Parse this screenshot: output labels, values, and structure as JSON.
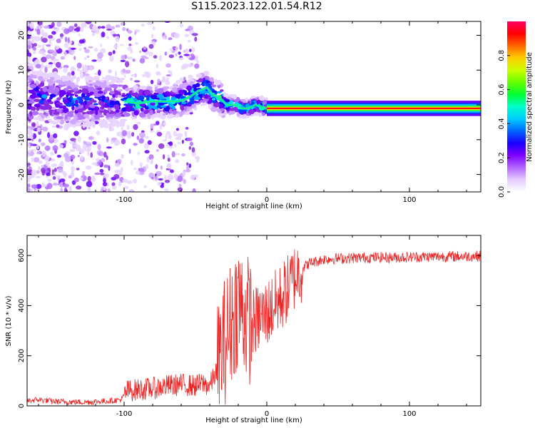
{
  "title": "S115.2023.122.01.54.R12",
  "chart_data": [
    {
      "type": "heatmap",
      "xlabel": "Height of straight line (km)",
      "ylabel": "Frequency (Hz)",
      "xlim": [
        -168,
        150
      ],
      "ylim": [
        -25,
        24
      ],
      "x_ticks": [
        -100,
        0,
        100
      ],
      "y_ticks": [
        -20,
        -10,
        0,
        10,
        20
      ],
      "colorbar": {
        "label": "Normalized spectral amplitude",
        "range": [
          0,
          1
        ],
        "ticks": [
          "0.0",
          "0.2",
          "0.4",
          "0.6",
          "0.8"
        ],
        "colormap": [
          "#ffffff",
          "#e6ccff",
          "#b266ff",
          "#7f00ff",
          "#1a00ff",
          "#0066ff",
          "#00ccff",
          "#00ffcc",
          "#00ff33",
          "#66ff00",
          "#ccff00",
          "#ffcc00",
          "#ff6600",
          "#ff0000",
          "#ff0066"
        ]
      },
      "ridge": [
        {
          "x": -165,
          "y": 3
        },
        {
          "x": -155,
          "y": 2
        },
        {
          "x": -140,
          "y": 1
        },
        {
          "x": -120,
          "y": 1
        },
        {
          "x": -100,
          "y": 1
        },
        {
          "x": -90,
          "y": 0.5
        },
        {
          "x": -80,
          "y": 1
        },
        {
          "x": -70,
          "y": 1
        },
        {
          "x": -62,
          "y": 1
        },
        {
          "x": -55,
          "y": 2
        },
        {
          "x": -48,
          "y": 4
        },
        {
          "x": -42,
          "y": 5
        },
        {
          "x": -38,
          "y": 3
        },
        {
          "x": -33,
          "y": 2
        },
        {
          "x": -28,
          "y": 0
        },
        {
          "x": -22,
          "y": 0
        },
        {
          "x": -18,
          "y": -1
        },
        {
          "x": -13,
          "y": -1
        },
        {
          "x": -8,
          "y": 0
        },
        {
          "x": -4,
          "y": -0.5
        },
        {
          "x": 0,
          "y": -1
        },
        {
          "x": 150,
          "y": -1
        }
      ]
    },
    {
      "type": "line",
      "xlabel": "Height of straight line (km)",
      "ylabel": "SNR (10 * v/v)",
      "xlim": [
        -168,
        150
      ],
      "ylim": [
        0,
        680
      ],
      "x_ticks": [
        -100,
        0,
        100
      ],
      "y_ticks": [
        0,
        200,
        400,
        600
      ],
      "series": [
        {
          "color": "#ee2222",
          "points": [
            [
              -168,
              20
            ],
            [
              -160,
              25
            ],
            [
              -150,
              18
            ],
            [
              -140,
              16
            ],
            [
              -130,
              15
            ],
            [
              -120,
              17
            ],
            [
              -110,
              20
            ],
            [
              -102,
              25
            ],
            [
              -98,
              60
            ],
            [
              -90,
              65
            ],
            [
              -80,
              70
            ],
            [
              -70,
              80
            ],
            [
              -60,
              85
            ],
            [
              -50,
              80
            ],
            [
              -45,
              90
            ],
            [
              -40,
              80
            ],
            [
              -35,
              140
            ],
            [
              -30,
              250
            ],
            [
              -25,
              330
            ],
            [
              -20,
              420
            ],
            [
              -15,
              360
            ],
            [
              -10,
              330
            ],
            [
              -5,
              350
            ],
            [
              0,
              370
            ],
            [
              5,
              400
            ],
            [
              10,
              430
            ],
            [
              15,
              470
            ],
            [
              20,
              520
            ],
            [
              25,
              550
            ],
            [
              30,
              570
            ],
            [
              40,
              585
            ],
            [
              50,
              588
            ],
            [
              70,
              592
            ],
            [
              90,
              592
            ],
            [
              110,
              595
            ],
            [
              130,
              596
            ],
            [
              150,
              598
            ]
          ]
        }
      ]
    }
  ]
}
